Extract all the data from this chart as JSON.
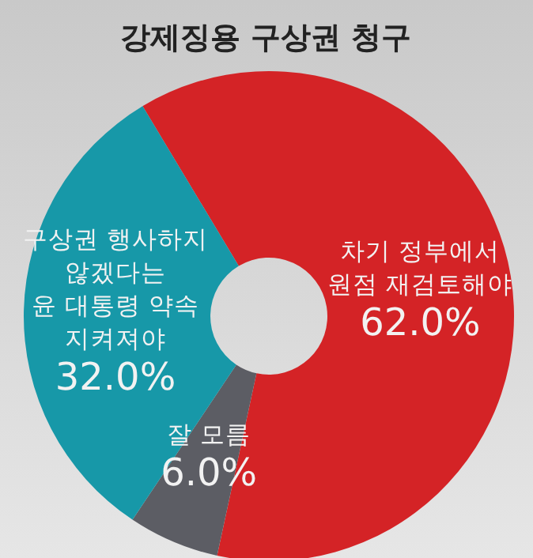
{
  "chart_data": {
    "type": "donut",
    "title": "강제징용 구상권 청구",
    "categories": [
      "차기 정부에서\n원점 재검토해야",
      "잘 모름",
      "구상권 행사하지\n않겠다는\n윤 대통령 약속\n지켜져야"
    ],
    "values": [
      62.0,
      6.0,
      32.0
    ],
    "value_labels": [
      "62.0%",
      "6.0%",
      "32.0%"
    ],
    "colors": [
      "#d42326",
      "#5c5d64",
      "#1798a8"
    ]
  }
}
